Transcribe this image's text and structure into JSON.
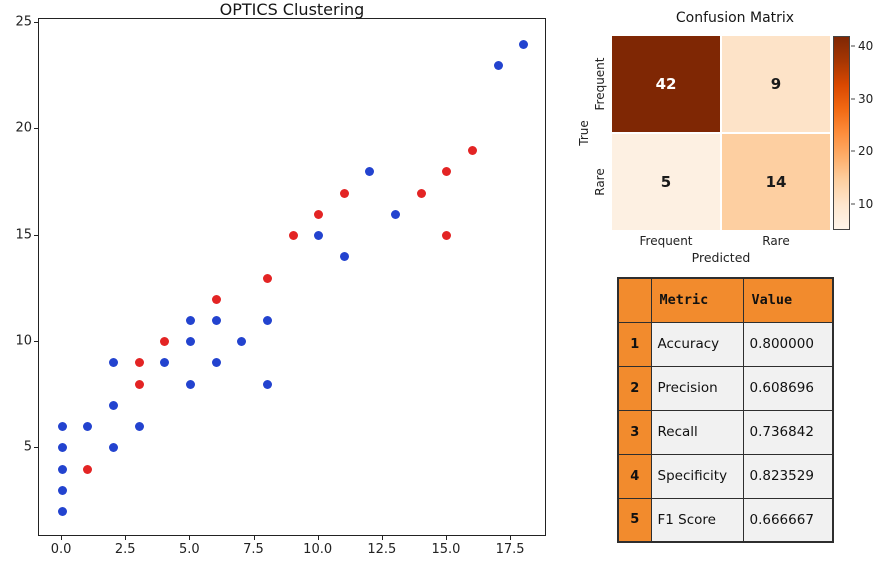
{
  "accent_colors": {
    "cluster_blue": "#2343cf",
    "cluster_red": "#e32424",
    "table_header_orange": "#f28b2d",
    "cell_gray": "#f1f1f1"
  },
  "chart_data": [
    {
      "type": "scatter",
      "title": "OPTICS Clustering",
      "xlabel": "",
      "ylabel": "",
      "xlim": [
        -0.9,
        18.9
      ],
      "ylim": [
        0.8,
        25.2
      ],
      "grid": false,
      "legend": "none",
      "x_ticks": [
        "0.0",
        "2.5",
        "5.0",
        "7.5",
        "10.0",
        "12.5",
        "15.0",
        "17.5"
      ],
      "y_ticks": [
        "5",
        "10",
        "15",
        "20",
        "25"
      ],
      "series": [
        {
          "name": "cluster-blue",
          "color": "#2343cf",
          "points": [
            [
              0,
              2
            ],
            [
              0,
              3
            ],
            [
              0,
              4
            ],
            [
              0,
              5
            ],
            [
              0,
              6
            ],
            [
              1,
              6
            ],
            [
              2,
              5
            ],
            [
              2,
              7
            ],
            [
              2,
              9
            ],
            [
              3,
              6
            ],
            [
              4,
              9
            ],
            [
              5,
              8
            ],
            [
              5,
              10
            ],
            [
              5,
              11
            ],
            [
              6,
              9
            ],
            [
              6,
              11
            ],
            [
              7,
              10
            ],
            [
              8,
              8
            ],
            [
              8,
              11
            ],
            [
              10,
              15
            ],
            [
              11,
              14
            ],
            [
              12,
              18
            ],
            [
              13,
              16
            ],
            [
              17,
              23
            ],
            [
              18,
              24
            ]
          ]
        },
        {
          "name": "cluster-red",
          "color": "#e32424",
          "points": [
            [
              1,
              4
            ],
            [
              3,
              8
            ],
            [
              3,
              9
            ],
            [
              4,
              10
            ],
            [
              6,
              12
            ],
            [
              8,
              13
            ],
            [
              9,
              15
            ],
            [
              10,
              16
            ],
            [
              11,
              17
            ],
            [
              14,
              17
            ],
            [
              15,
              15
            ],
            [
              15,
              18
            ],
            [
              16,
              19
            ]
          ]
        }
      ]
    },
    {
      "type": "heatmap",
      "title": "Confusion Matrix",
      "xlabel": "Predicted",
      "ylabel": "True",
      "x_labels": [
        "Frequent",
        "Rare"
      ],
      "y_labels": [
        "Frequent",
        "Rare"
      ],
      "values": [
        [
          42,
          9
        ],
        [
          5,
          14
        ]
      ],
      "cell_colors": [
        [
          "#7f2704",
          "#fde3c8"
        ],
        [
          "#fdf0e2",
          "#fdcfa1"
        ]
      ],
      "cell_text_colors": [
        [
          "#ffffff",
          "#1a1a1a"
        ],
        [
          "#1a1a1a",
          "#1a1a1a"
        ]
      ],
      "colorbar": {
        "ticks": [
          10,
          20,
          30,
          40
        ],
        "vmin": 5,
        "vmax": 42,
        "colors_top_to_bottom": [
          "#7f2704",
          "#a63603",
          "#d94801",
          "#f16913",
          "#fd8d3c",
          "#fdae6b",
          "#fdd0a2",
          "#fee6ce",
          "#fff5eb"
        ]
      }
    },
    {
      "type": "table",
      "columns": [
        "",
        "Metric",
        "Value"
      ],
      "rows": [
        {
          "index": "1",
          "metric": "Accuracy",
          "value": "0.800000"
        },
        {
          "index": "2",
          "metric": "Precision",
          "value": "0.608696"
        },
        {
          "index": "3",
          "metric": "Recall",
          "value": "0.736842"
        },
        {
          "index": "4",
          "metric": "Specificity",
          "value": "0.823529"
        },
        {
          "index": "5",
          "metric": "F1 Score",
          "value": "0.666667"
        }
      ],
      "header_bg": "#f28b2d",
      "cell_bg": "#f1f1f1"
    }
  ]
}
